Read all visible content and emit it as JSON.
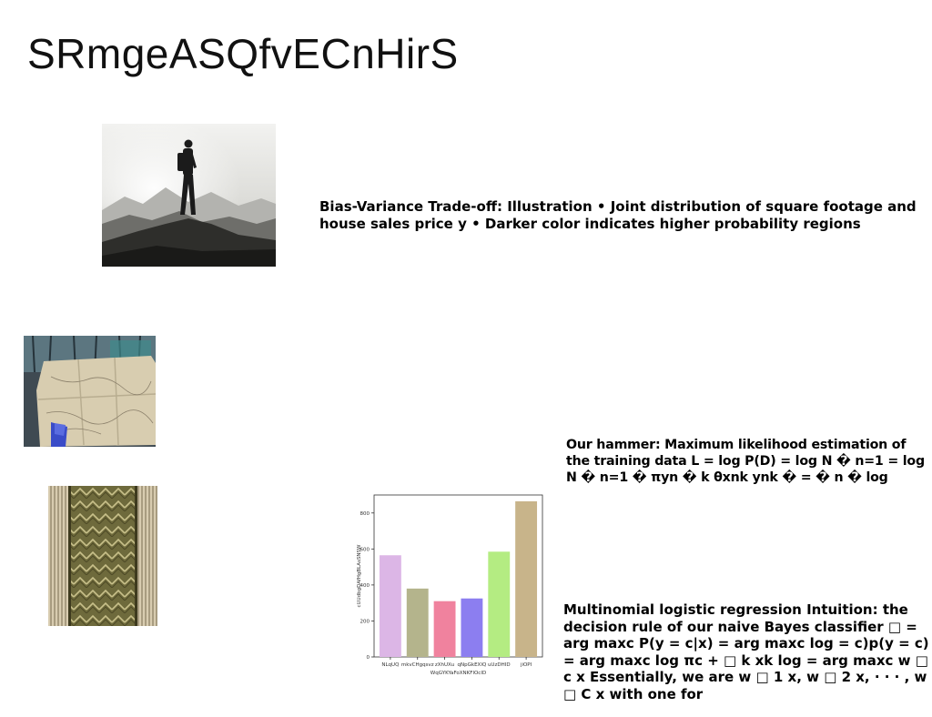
{
  "slide": {
    "title": "SRmgeASQfvECnHirS",
    "images": [
      {
        "subject": "hiker-on-mountain-ridge"
      },
      {
        "subject": "hands-holding-paper-map"
      },
      {
        "subject": "olive-patterned-fabric"
      }
    ],
    "text_blocks": [
      {
        "text": "Bias-Variance Trade-off: Illustration • Joint distribution of square footage and house sales price y • Darker color indicates higher probability regions"
      },
      {
        "text": "Our hammer: Maximum likelihood estimation of the training data L = log P(D) = log N � n=1 = log N � n=1 � πyn � k θxnk ynk � = � n � log"
      },
      {
        "text": "Multinomial logistic regression Intuition: the decision rule of our naive Bayes classifier □ = arg maxc P(y = c|x) = arg maxc log = c)p(y = c) = arg maxc log πc + □ k xk log = arg maxc w □ c x Essentially, we are w □ 1 x, w □ 2 x, · · · , w □ C x with one for"
      }
    ]
  },
  "chart_data": {
    "type": "bar",
    "categories": [
      "NLqUQ",
      "mkvCHgqsvz",
      "zXhUXu",
      "qNpGkEXIQ",
      "uUzDHID",
      "jiOPI"
    ],
    "values": [
      565,
      380,
      310,
      325,
      585,
      865
    ],
    "colors": [
      "#dcb6e6",
      "#b4b48c",
      "#f0829e",
      "#8c7ef0",
      "#b4ec82",
      "#c8b48a"
    ],
    "xlabel": "WqGYKYaFoXNKFlOcID",
    "ylabel": "cUUdbgDAfHgBLAsSNSW",
    "ylim": [
      0,
      900
    ],
    "yticks": [
      0,
      200,
      400,
      600,
      800
    ],
    "grid": false
  }
}
